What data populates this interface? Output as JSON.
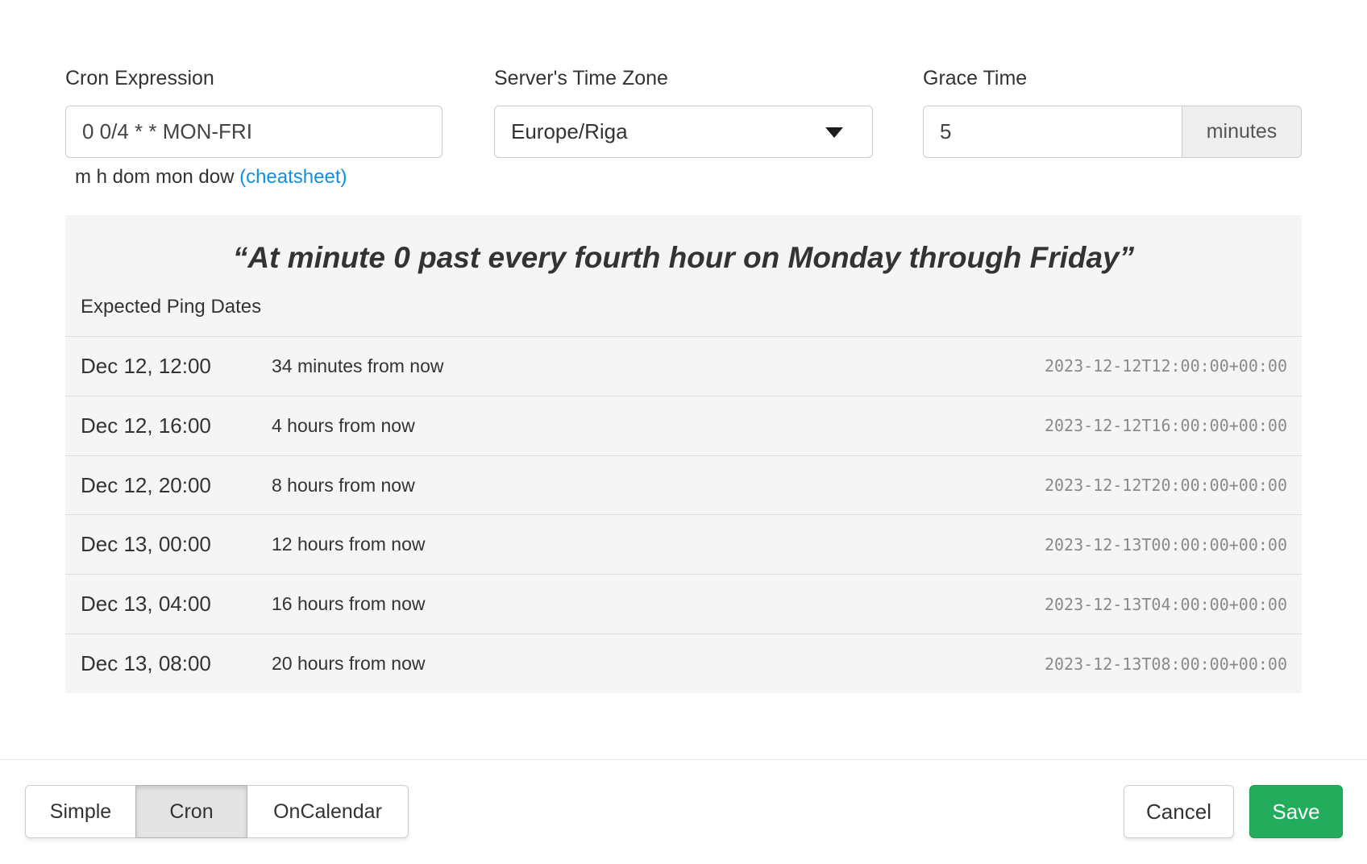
{
  "colors": {
    "link_blue": "#0d91e3",
    "save_green": "#23ac5b",
    "panel_bg": "#f5f5f5"
  },
  "form": {
    "cron": {
      "label": "Cron Expression",
      "value": "0 0/4 * * MON-FRI",
      "hint": "m h dom mon dow",
      "hint_link": "(cheatsheet)"
    },
    "timezone": {
      "label": "Server's Time Zone",
      "selected": "Europe/Riga"
    },
    "grace": {
      "label": "Grace Time",
      "value": "5",
      "unit": "minutes"
    }
  },
  "preview": {
    "description": "“At minute 0 past every fourth hour on Monday through Friday”",
    "heading": "Expected Ping Dates",
    "rows": [
      {
        "local": "Dec 12, 12:00",
        "relative": "34 minutes from now",
        "iso": "2023-12-12T12:00:00+00:00"
      },
      {
        "local": "Dec 12, 16:00",
        "relative": "4 hours from now",
        "iso": "2023-12-12T16:00:00+00:00"
      },
      {
        "local": "Dec 12, 20:00",
        "relative": "8 hours from now",
        "iso": "2023-12-12T20:00:00+00:00"
      },
      {
        "local": "Dec 13, 00:00",
        "relative": "12 hours from now",
        "iso": "2023-12-13T00:00:00+00:00"
      },
      {
        "local": "Dec 13, 04:00",
        "relative": "16 hours from now",
        "iso": "2023-12-13T04:00:00+00:00"
      },
      {
        "local": "Dec 13, 08:00",
        "relative": "20 hours from now",
        "iso": "2023-12-13T08:00:00+00:00"
      }
    ]
  },
  "footer": {
    "modes": [
      {
        "label": "Simple",
        "active": false
      },
      {
        "label": "Cron",
        "active": true
      },
      {
        "label": "OnCalendar",
        "active": false
      }
    ],
    "cancel": "Cancel",
    "save": "Save"
  }
}
